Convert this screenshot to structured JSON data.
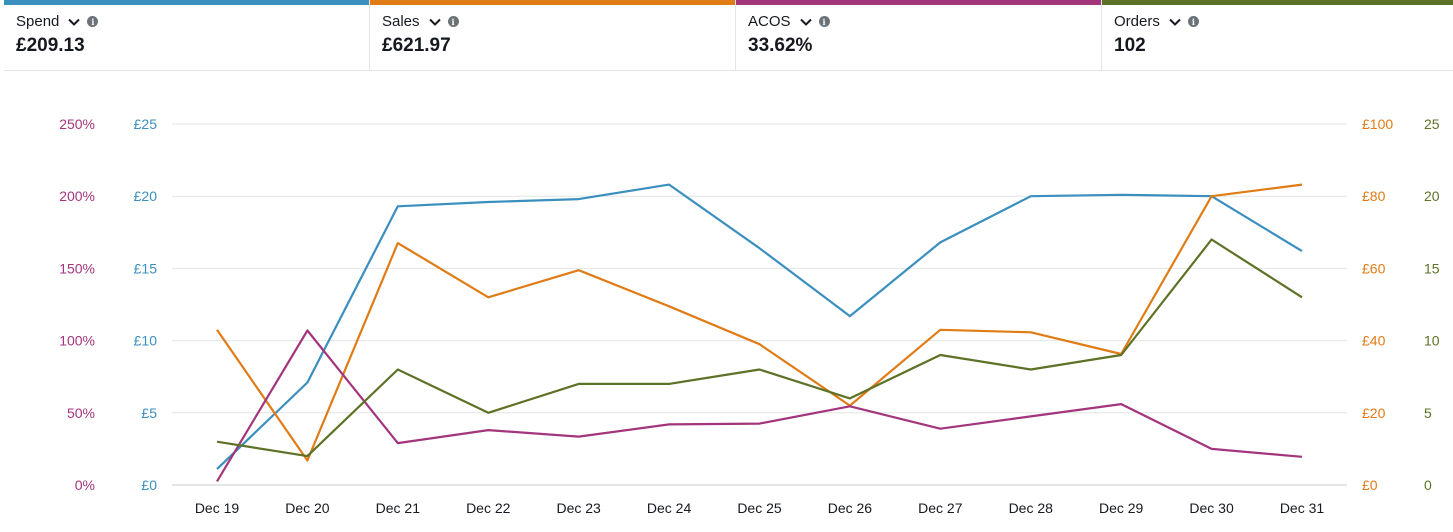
{
  "metrics": [
    {
      "name": "Spend",
      "value": "£209.13",
      "color": "#3a8fbf",
      "icon": "chevron-down-icon"
    },
    {
      "name": "Sales",
      "value": "£621.97",
      "color": "#e07b16",
      "icon": "chevron-down-icon"
    },
    {
      "name": "ACOS",
      "value": "33.62%",
      "color": "#a3357d",
      "icon": "chevron-down-icon"
    },
    {
      "name": "Orders",
      "value": "102",
      "color": "#5d7226",
      "icon": "chevron-down-icon"
    }
  ],
  "chart_data": {
    "type": "line",
    "categories": [
      "Dec 19",
      "Dec 20",
      "Dec 21",
      "Dec 22",
      "Dec 23",
      "Dec 24",
      "Dec 25",
      "Dec 26",
      "Dec 27",
      "Dec 28",
      "Dec 29",
      "Dec 30",
      "Dec 31"
    ],
    "grid": true,
    "axes": {
      "acos": {
        "side": "left",
        "ticks": [
          "0%",
          "50%",
          "100%",
          "150%",
          "200%",
          "250%"
        ],
        "ylim": [
          0,
          250
        ],
        "color": "#a3357d"
      },
      "spend": {
        "side": "left",
        "ticks": [
          "£0",
          "£5",
          "£10",
          "£15",
          "£20",
          "£25"
        ],
        "ylim": [
          0,
          25
        ],
        "color": "#3a8fbf"
      },
      "sales": {
        "side": "right",
        "ticks": [
          "£0",
          "£20",
          "£40",
          "£60",
          "£80",
          "£100"
        ],
        "ylim": [
          0,
          100
        ],
        "color": "#e07b16"
      },
      "orders": {
        "side": "right",
        "ticks": [
          "0",
          "5",
          "10",
          "15",
          "20",
          "25"
        ],
        "ylim": [
          0,
          25
        ],
        "color": "#5d7226"
      }
    },
    "series": [
      {
        "name": "Spend",
        "axis": "spend",
        "color": "#3a8fbf",
        "values": [
          1.1,
          7.1,
          19.3,
          19.6,
          19.8,
          20.8,
          16.4,
          11.7,
          16.8,
          20.0,
          20.1,
          20.0,
          16.2
        ]
      },
      {
        "name": "Sales",
        "axis": "sales",
        "color": "#e07b16",
        "values": [
          43,
          6.8,
          67,
          52,
          59.5,
          49.5,
          39,
          22,
          43,
          42.3,
          36.3,
          80,
          83.2
        ]
      },
      {
        "name": "ACOS",
        "axis": "acos",
        "color": "#a3357d",
        "values": [
          2.5,
          107,
          29,
          38,
          33.5,
          42,
          42.5,
          54.5,
          39,
          47.5,
          56,
          25,
          19.5
        ]
      },
      {
        "name": "Orders",
        "axis": "orders",
        "color": "#5d7226",
        "values": [
          3,
          2,
          8,
          5,
          7,
          7,
          8,
          6,
          9,
          8,
          9,
          17,
          13
        ]
      }
    ]
  }
}
